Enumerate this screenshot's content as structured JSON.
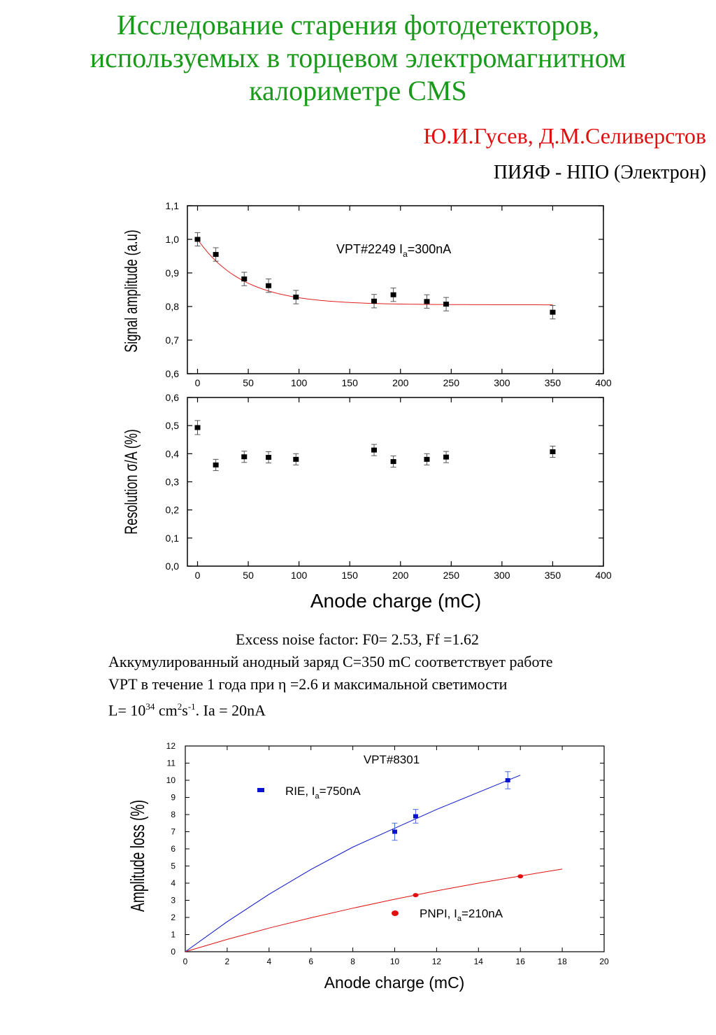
{
  "header": {
    "title_lines": [
      "Исследование старения фотодетекторов,",
      "используемых в  торцевом электромагнитном",
      "калориметре CMS"
    ],
    "authors": "Ю.И.Гусев, Д.М.Селиверстов",
    "organization": "ПИЯФ - НПО (Электрон)"
  },
  "colors": {
    "title": "#1a9a1a",
    "authors": "#e01010",
    "fit_red": "#e02020",
    "series_blue": "#0a14d0",
    "series_red": "#e01010"
  },
  "notes": {
    "line1": "Excess noise factor: F0= 2.53, Ff =1.62",
    "line2": "Аккумулированный анодный заряд  С=350 mC соответствует работе",
    "line3": "VPT в течение 1 года при  η =2.6 и максимальной светимости",
    "line4_prefix": "L= 10",
    "line4_exp1": "34",
    "line4_mid1": " cm",
    "line4_exp2": "2",
    "line4_mid2": "s",
    "line4_exp3": "-1",
    "line4_suffix": ". Ia = 20nA"
  },
  "chart_data": [
    {
      "type": "scatter",
      "panel": "top",
      "annotation_main": "VPT#2249 I",
      "annotation_sub": "a",
      "annotation_tail": "=300nA",
      "xlabel": "",
      "ylabel": "Signal amplitude (a.u)",
      "xlim": [
        -10,
        400
      ],
      "ylim": [
        0.6,
        1.1
      ],
      "x_ticks": [
        0,
        50,
        100,
        150,
        200,
        250,
        300,
        350,
        400
      ],
      "y_ticks": [
        0.6,
        0.7,
        0.8,
        0.9,
        1.0,
        1.1
      ],
      "y_tick_labels": [
        "0,6",
        "0,7",
        "0,8",
        "0,9",
        "1,0",
        "1,1"
      ],
      "x": [
        0,
        18,
        46,
        70,
        97,
        174,
        193,
        226,
        245,
        350
      ],
      "y": [
        1.0,
        0.955,
        0.882,
        0.862,
        0.828,
        0.816,
        0.835,
        0.815,
        0.807,
        0.783
      ],
      "yerr": [
        0.02,
        0.02,
        0.02,
        0.02,
        0.02,
        0.02,
        0.02,
        0.02,
        0.02,
        0.02
      ],
      "fit": {
        "type": "exponential",
        "color": "#e02020"
      },
      "grid": false
    },
    {
      "type": "scatter",
      "panel": "bottom",
      "xlabel": "Anode charge (mC)",
      "ylabel": "Resolution σ/A (%)",
      "xlim": [
        -10,
        400
      ],
      "ylim": [
        0.0,
        0.6
      ],
      "x_ticks": [
        0,
        50,
        100,
        150,
        200,
        250,
        300,
        350,
        400
      ],
      "y_ticks": [
        0.0,
        0.1,
        0.2,
        0.3,
        0.4,
        0.5,
        0.6
      ],
      "y_tick_labels": [
        "0,0",
        "0,1",
        "0,2",
        "0,3",
        "0,4",
        "0,5",
        "0,6"
      ],
      "x": [
        0,
        18,
        46,
        70,
        97,
        174,
        193,
        226,
        245,
        350
      ],
      "y": [
        0.493,
        0.36,
        0.389,
        0.387,
        0.38,
        0.413,
        0.372,
        0.38,
        0.388,
        0.407
      ],
      "yerr": [
        0.025,
        0.02,
        0.02,
        0.02,
        0.02,
        0.02,
        0.02,
        0.02,
        0.02,
        0.02
      ],
      "grid": false
    },
    {
      "type": "scatter",
      "panel": "amplitude-loss",
      "title": "VPT#8301",
      "xlabel": "Anode charge (mC)",
      "ylabel": "Amplitude loss (%)",
      "xlim": [
        0,
        20
      ],
      "ylim": [
        0,
        12
      ],
      "x_ticks": [
        0,
        2,
        4,
        6,
        8,
        10,
        12,
        14,
        16,
        18,
        20
      ],
      "y_ticks": [
        0,
        1,
        2,
        3,
        4,
        5,
        6,
        7,
        8,
        9,
        10,
        11,
        12
      ],
      "series": [
        {
          "name_main": "RIE, I",
          "name_sub": "a",
          "name_tail": "=750nA",
          "color": "#0a14d0",
          "marker": "square",
          "x": [
            10.0,
            11.0,
            15.4
          ],
          "y": [
            7.0,
            7.9,
            10.0
          ],
          "yerr": [
            0.5,
            0.4,
            0.5
          ],
          "fit_x": [
            0,
            2,
            4,
            6,
            8,
            10,
            12,
            14,
            16
          ],
          "fit_y": [
            0,
            1.75,
            3.35,
            4.8,
            6.1,
            7.2,
            8.3,
            9.3,
            10.3
          ]
        },
        {
          "name_main": "PNPI, I",
          "name_sub": "a",
          "name_tail": "=210nA",
          "color": "#e01010",
          "marker": "circle",
          "x": [
            11.0,
            16.0
          ],
          "y": [
            3.3,
            4.4
          ],
          "fit_x": [
            0,
            2,
            4,
            6,
            8,
            10,
            12,
            14,
            16,
            18
          ],
          "fit_y": [
            0,
            0.72,
            1.38,
            1.98,
            2.54,
            3.06,
            3.55,
            4.0,
            4.42,
            4.82
          ]
        }
      ],
      "grid": false
    }
  ]
}
